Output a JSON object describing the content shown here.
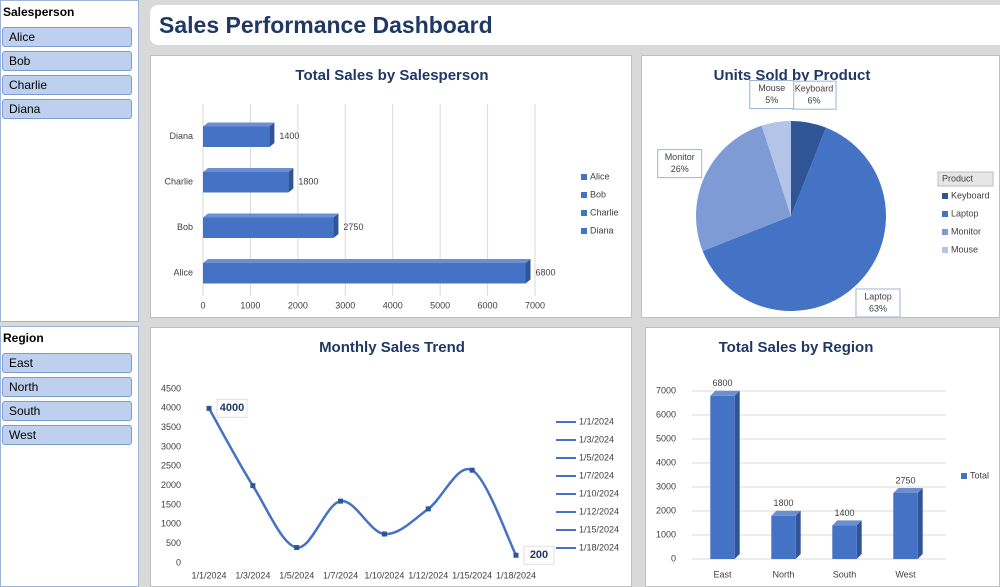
{
  "header": {
    "title": "Sales Performance Dashboard"
  },
  "slicers": [
    {
      "title": "Salesperson",
      "items": [
        "Alice",
        "Bob",
        "Charlie",
        "Diana"
      ]
    },
    {
      "title": "Region",
      "items": [
        "East",
        "North",
        "South",
        "West"
      ]
    }
  ],
  "chart_data": [
    {
      "type": "hbar",
      "title": "Total Sales by Salesperson",
      "categories": [
        "Alice",
        "Bob",
        "Charlie",
        "Diana"
      ],
      "values": [
        6800,
        2750,
        1800,
        1400
      ],
      "color": "#4472c4",
      "xlim": [
        0,
        7000
      ],
      "xticks": [
        0,
        1000,
        2000,
        3000,
        4000,
        5000,
        6000,
        7000
      ],
      "grid": true,
      "legend": "right"
    },
    {
      "type": "pie",
      "title": "Units Sold by Product",
      "legend_title": "Product",
      "categories": [
        "Keyboard",
        "Laptop",
        "Monitor",
        "Mouse"
      ],
      "values": [
        6,
        63,
        26,
        5
      ],
      "value_labels": [
        "6%",
        "63%",
        "26%",
        "5%"
      ],
      "colors": [
        "#2f5597",
        "#4472c4",
        "#7f9bd6",
        "#b4c3e8"
      ],
      "legend": "right"
    },
    {
      "type": "line",
      "title": "Monthly Sales Trend",
      "x": [
        "1/1/2024",
        "1/3/2024",
        "1/5/2024",
        "1/7/2024",
        "1/10/2024",
        "1/12/2024",
        "1/15/2024",
        "1/18/2024"
      ],
      "values": [
        4000,
        2000,
        400,
        1600,
        750,
        1400,
        2400,
        200
      ],
      "color": "#4472c4",
      "smooth": true,
      "ylim": [
        0,
        4500
      ],
      "yticks": [
        0,
        500,
        1000,
        1500,
        2000,
        2500,
        3000,
        3500,
        4000,
        4500
      ],
      "legend": "right"
    },
    {
      "type": "bar",
      "title": "Total Sales by Region",
      "categories": [
        "East",
        "North",
        "South",
        "West"
      ],
      "series": [
        {
          "name": "Total",
          "color": "#4472c4",
          "values": [
            6800,
            1800,
            1400,
            2750
          ]
        }
      ],
      "ylim": [
        0,
        7000
      ],
      "yticks": [
        0,
        1000,
        2000,
        3000,
        4000,
        5000,
        6000,
        7000
      ],
      "grid": true,
      "legend": "right"
    }
  ]
}
